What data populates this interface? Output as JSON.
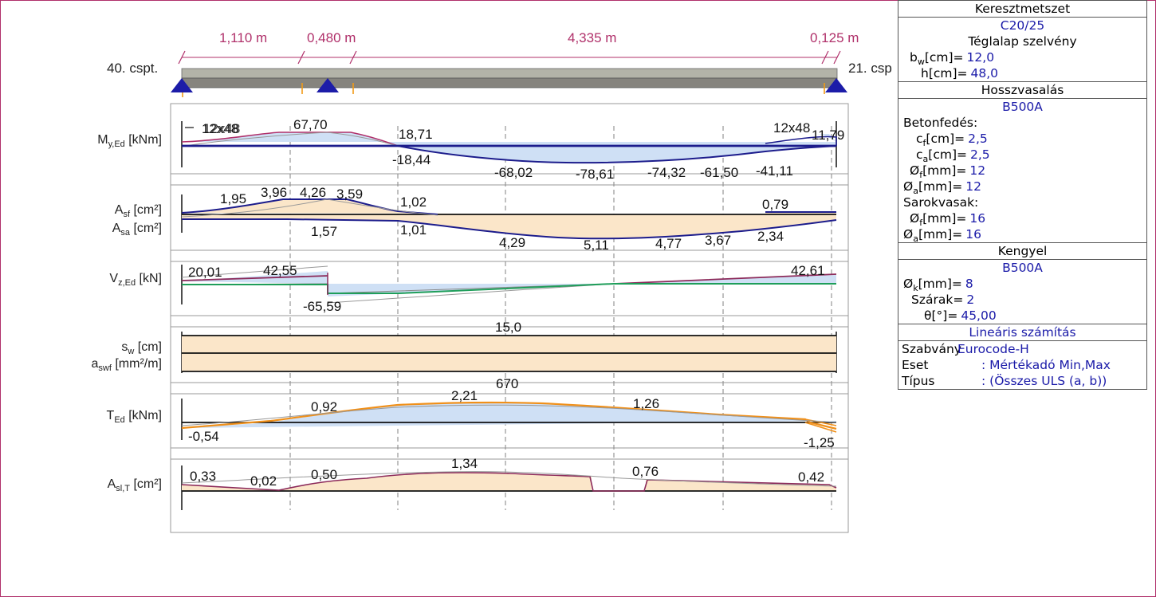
{
  "diagram": {
    "span_dims": [
      "1,110 m",
      "0,480 m",
      "4,335 m",
      "0,125 m"
    ],
    "node_left": "40. cspt.",
    "node_right": "21. csp",
    "rows": [
      {
        "label": "M",
        "sub": "y,Ed",
        "unit": " [kNm]"
      },
      {
        "label": "A",
        "sub": "sf",
        "unit": " [cm²]"
      },
      {
        "label": "A",
        "sub": "sa",
        "unit": " [cm²]"
      },
      {
        "label": "V",
        "sub": "z,Ed",
        "unit": " [kN]"
      },
      {
        "label": "s",
        "sub": "w",
        "unit": " [cm]"
      },
      {
        "label": "a",
        "sub": "swf",
        "unit": " [mm²/m]"
      },
      {
        "label": "T",
        "sub": "Ed",
        "unit": " [kNm]"
      },
      {
        "label": "A",
        "sub": "sl,T",
        "unit": " [cm²]"
      }
    ],
    "m_labels": [
      "12x48",
      "12x48",
      "67,70",
      "18,71",
      "-18,44",
      "-68,02",
      "-78,61",
      "-74,32",
      "-61,50",
      "-41,11",
      "12x48",
      "11,79"
    ],
    "as_labels": [
      "1,95",
      "3,96",
      "4,26",
      "3,59",
      "1,02",
      "0,79",
      "1,57",
      "1,01",
      "4,29",
      "5,11",
      "4,77",
      "3,67",
      "2,34"
    ],
    "v_labels": [
      "20,01",
      "42,55",
      "-65,59",
      "42,61"
    ],
    "s_labels": [
      "15,0",
      "670"
    ],
    "t_labels": [
      "0,92",
      "2,21",
      "1,26",
      "-0,54",
      "-1,25"
    ],
    "asl_labels": [
      "0,33",
      "0,02",
      "0,50",
      "1,34",
      "0,76",
      "0,42"
    ]
  },
  "panel": {
    "cross_section": {
      "title": "Keresztmetszet",
      "material": "C20/25",
      "shape": "Téglalap szelvény",
      "bw_label": "b",
      "bw_sub": "w",
      "bw_unit": "[cm]=",
      "bw_value": "12,0",
      "h_label": "h[cm]=",
      "h_value": "48,0"
    },
    "longitudinal": {
      "title": "Hosszvasalás",
      "material": "B500A",
      "cover_title": "Betonfedés:",
      "cf_label": "c",
      "cf_sub": "f",
      "cf_unit": "[cm]=",
      "cf_value": "2,5",
      "ca_label": "c",
      "ca_sub": "a",
      "ca_unit": "[cm]=",
      "ca_value": "2,5",
      "df_label": "Ø",
      "df_sub": "f",
      "df_unit": "[mm]=",
      "df_value": "12",
      "da_label": "Ø",
      "da_sub": "a",
      "da_unit": "[mm]=",
      "da_value": "12",
      "corner_title": "Sarokvasak:",
      "cdf_label": "Ø",
      "cdf_sub": "f",
      "cdf_unit": "[mm]=",
      "cdf_value": "16",
      "cda_label": "Ø",
      "cda_sub": "a",
      "cda_unit": "[mm]=",
      "cda_value": "16"
    },
    "stirrup": {
      "title": "Kengyel",
      "material": "B500A",
      "dk_label": "Ø",
      "dk_sub": "k",
      "dk_unit": "[mm]=",
      "dk_value": "8",
      "legs_label": "Szárak=",
      "legs_value": "2",
      "theta_label": "θ[°]=",
      "theta_value": "45,00"
    },
    "analysis": {
      "title": "Lineáris számítás",
      "standard_label": "Szabvány",
      "standard_value": "Eurocode-H",
      "case_label": "Eset",
      "case_value": ": Mértékadó Min,Max",
      "type_label": "Típus",
      "type_value": ": (Összes ULS (a, b))"
    }
  }
}
